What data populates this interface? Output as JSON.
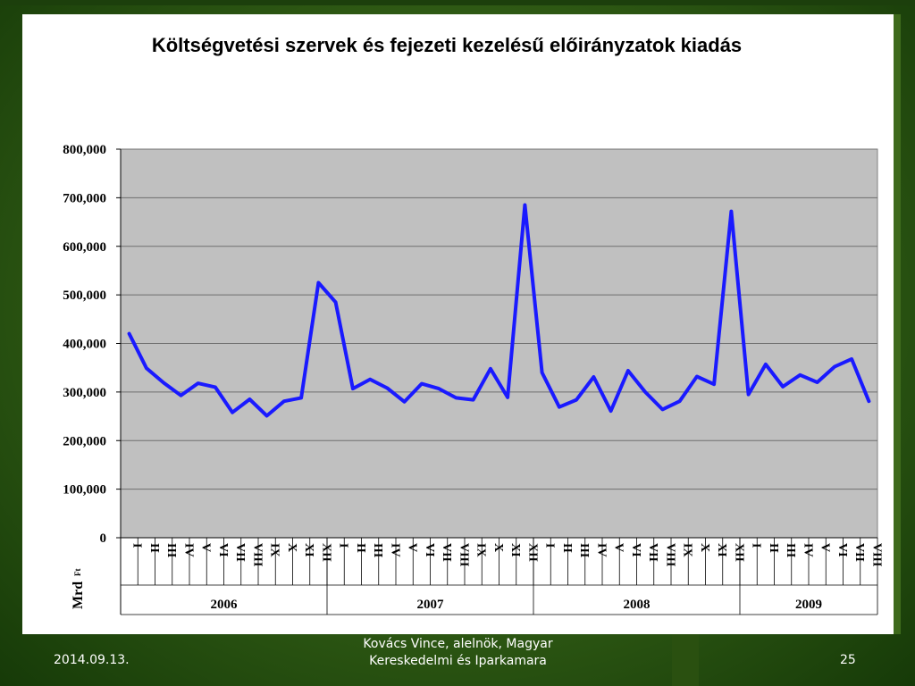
{
  "slide": {
    "footer_date": "2014.09.13.",
    "footer_author": "Kovács Vince, alelnök, Magyar Kereskedelmi és Iparkamara",
    "page_number": "25"
  },
  "chart_data": {
    "type": "line",
    "title": "Költségvetési szervek és fejezeti kezelésű előirányzatok kiadás",
    "ylabel": "Mrd",
    "ylabel_unit": "Ft",
    "ylim": [
      0,
      800
    ],
    "y_ticks": [
      "0",
      "100,000",
      "200,000",
      "300,000",
      "400,000",
      "500,000",
      "600,000",
      "700,000",
      "800,000"
    ],
    "grid": true,
    "series_color": "#1a1aff",
    "plot_background": "#c0c0c0",
    "years": [
      {
        "year": "2006",
        "months": [
          "I",
          "II",
          "III",
          "IV",
          "V",
          "VI",
          "VII",
          "VIII",
          "IX",
          "X",
          "XI",
          "XII"
        ]
      },
      {
        "year": "2007",
        "months": [
          "I",
          "II",
          "III",
          "IV",
          "V",
          "VI",
          "VII",
          "VIII",
          "IX",
          "X",
          "XI",
          "XII"
        ]
      },
      {
        "year": "2008",
        "months": [
          "I",
          "II",
          "III",
          "IV",
          "V",
          "VI",
          "VII",
          "VIII",
          "IX",
          "X",
          "XI",
          "XII"
        ]
      },
      {
        "year": "2009",
        "months": [
          "I",
          "II",
          "III",
          "IV",
          "V",
          "VI",
          "VII",
          "VIII"
        ]
      }
    ],
    "values": [
      420,
      349,
      319,
      293,
      318,
      310,
      258,
      285,
      251,
      281,
      288,
      525,
      485,
      307,
      326,
      308,
      280,
      317,
      307,
      288,
      284,
      348,
      289,
      685,
      340,
      269,
      284,
      331,
      261,
      344,
      300,
      264,
      281,
      332,
      316,
      672,
      295,
      357,
      311,
      335,
      320,
      352,
      368,
      281
    ]
  }
}
